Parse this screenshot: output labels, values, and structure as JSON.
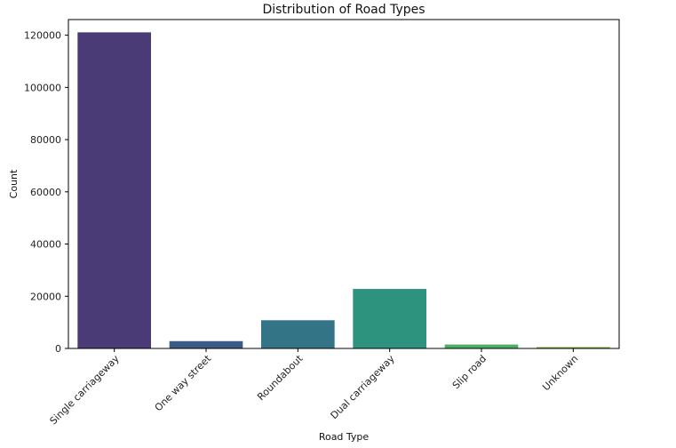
{
  "chart_data": {
    "type": "bar",
    "title": "Distribution of Road Types",
    "xlabel": "Road Type",
    "ylabel": "Count",
    "categories": [
      "Single carriageway",
      "One way street",
      "Roundabout",
      "Dual carriageway",
      "Slip road",
      "Unknown"
    ],
    "values": [
      121100,
      2800,
      10800,
      22800,
      1500,
      500
    ],
    "colors": [
      "#4a3b76",
      "#3b5a86",
      "#337487",
      "#2d927e",
      "#4cb064",
      "#7aa83a"
    ],
    "ylim": [
      0,
      126000
    ],
    "yticks": [
      0,
      20000,
      40000,
      60000,
      80000,
      100000,
      120000
    ],
    "ytick_labels": [
      "0",
      "20000",
      "40000",
      "60000",
      "80000",
      "100000",
      "120000"
    ],
    "grid": false,
    "legend": "none"
  }
}
